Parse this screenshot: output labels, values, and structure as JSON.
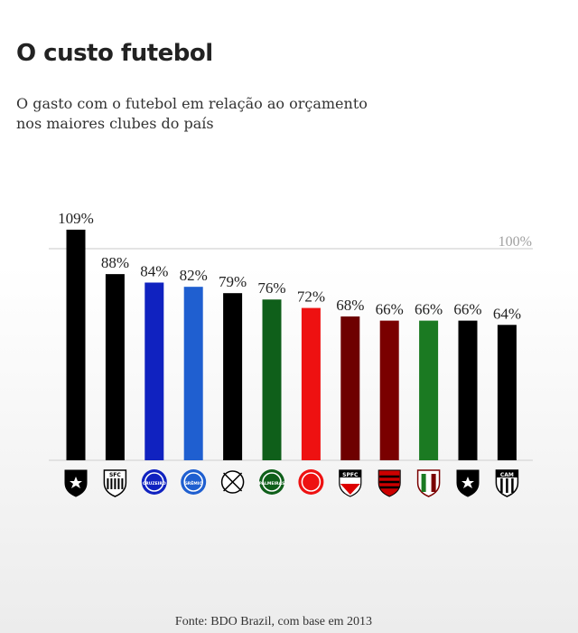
{
  "title": "O custo futebol",
  "subtitle_lines": [
    "O gasto com o futebol em relação ao orçamento",
    "nos maiores clubes do país"
  ],
  "source": "Fonte: BDO Brazil, com base em 2013",
  "chart_data": {
    "type": "bar",
    "categories": [
      "Botafogo",
      "Santos",
      "Cruzeiro",
      "Grêmio",
      "Corinthians",
      "Palmeiras",
      "Internacional",
      "São Paulo",
      "Flamengo",
      "Fluminense",
      "Vasco",
      "Atlético-MG"
    ],
    "values": [
      109,
      88,
      84,
      82,
      79,
      76,
      72,
      68,
      66,
      66,
      66,
      64
    ],
    "value_labels": [
      "109%",
      "88%",
      "84%",
      "82%",
      "79%",
      "76%",
      "72%",
      "68%",
      "66%",
      "66%",
      "66%",
      "64%"
    ],
    "colors": [
      "#000000",
      "#000000",
      "#1022c0",
      "#1f5fd0",
      "#000000",
      "#0f5f1a",
      "#ee1111",
      "#6e0000",
      "#7a0000",
      "#1b7a22",
      "#000000",
      "#000000"
    ],
    "icons": [
      "botafogo-crest-icon",
      "santos-crest-icon",
      "cruzeiro-crest-icon",
      "gremio-crest-icon",
      "corinthians-crest-icon",
      "palmeiras-crest-icon",
      "internacional-crest-icon",
      "sao-paulo-crest-icon",
      "flamengo-crest-icon",
      "fluminense-crest-icon",
      "vasco-crest-icon",
      "atletico-mg-crest-icon"
    ],
    "badge_text": [
      "",
      "SFC",
      "CRUZEIRO",
      "GRÊMIO",
      "",
      "PALMEIRAS",
      "",
      "SPFC",
      "",
      "",
      "",
      "CAM"
    ],
    "reference_line": {
      "value": 100,
      "label": "100%"
    },
    "ylim": [
      0,
      109
    ]
  }
}
